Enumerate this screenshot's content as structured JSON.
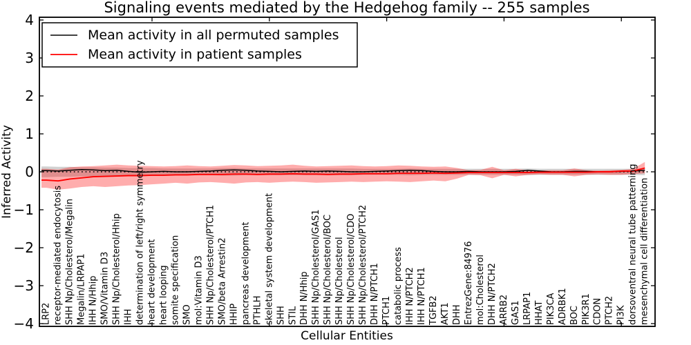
{
  "chart_data": {
    "type": "line",
    "title": "Signaling events mediated by the Hedgehog family -- 255 samples",
    "xlabel": "Cellular Entities",
    "ylabel": "Inferred Activity",
    "ylim": [
      -4,
      4
    ],
    "yticks": [
      -4,
      -3,
      -2,
      -1,
      0,
      1,
      2,
      3,
      4
    ],
    "xticks": [
      10,
      20,
      30,
      40,
      50
    ],
    "grid": false,
    "legend_position": "upper left",
    "sample_count_in_title": 255,
    "categories": [
      "LRP2",
      "receptor-mediated endocytosis",
      "SHH Np/Cholesterol/Megalin",
      "Megalin/LRPAP1",
      "IHH N/Hhip",
      "SMO/Vitamin D3",
      "SHH Np/Cholesterol/Hhip",
      "IHH",
      "determination of left/right symmetry",
      "heart development",
      "heart looping",
      "somite specification",
      "SMO",
      "mol:Vitamin D3",
      "SHH Np/Cholesterol/PTCH1",
      "SMO/beta Arrestin2",
      "HHIP",
      "pancreas development",
      "PTHLH",
      "skeletal system development",
      "SHH",
      "STIL",
      "DHH N/Hhip",
      "SHH Np/Cholesterol/GAS1",
      "SHH Np/Cholesterol/BOC",
      "SHH Np/Cholesterol",
      "SHH Np/Cholesterol/CDO",
      "SHH Np/Cholesterol/PTCH2",
      "DHH N/PTCH1",
      "PTCH1",
      "catabolic process",
      "IHH N/PTCH2",
      "IHH N/PTCH1",
      "TGFB2",
      "AKT1",
      "DHH",
      "EntrezGene:84976",
      "mol:Cholesterol",
      "DHH N/PTCH2",
      "ARRB2",
      "GAS1",
      "LRPAP1",
      "HHAT",
      "PIK3CA",
      "ADRBK1",
      "BOC",
      "PIK3R1",
      "CDON",
      "PTCH2",
      "PI3K",
      "dorsoventral neural tube patterning",
      "mesenchymal cell differentiation"
    ],
    "series": [
      {
        "name": "Mean activity in all permuted samples",
        "color": "#000000",
        "linestyle": "solid",
        "values": [
          0.03,
          0.02,
          0.04,
          0.06,
          0.05,
          0.03,
          0.04,
          0.01,
          -0.01,
          0.0,
          0.01,
          0.0,
          0.0,
          0.01,
          0.02,
          0.04,
          0.05,
          0.04,
          0.02,
          0.01,
          0.0,
          0.01,
          0.02,
          0.01,
          0.02,
          0.01,
          0.0,
          0.0,
          0.01,
          0.02,
          0.03,
          0.04,
          0.03,
          0.01,
          0.0,
          0.0,
          0.01,
          0.0,
          0.0,
          0.0,
          0.01,
          0.04,
          0.02,
          0.0,
          0.0,
          0.01,
          0.01,
          0.0,
          0.0,
          0.01,
          0.02,
          0.04
        ]
      },
      {
        "name": "Mean activity in patient samples",
        "color": "#ff0000",
        "linestyle": "solid",
        "values": [
          -0.22,
          -0.24,
          -0.19,
          -0.16,
          -0.13,
          -0.12,
          -0.11,
          -0.1,
          -0.1,
          -0.09,
          -0.09,
          -0.08,
          -0.08,
          -0.07,
          -0.07,
          -0.07,
          -0.06,
          -0.06,
          -0.07,
          -0.06,
          -0.06,
          -0.05,
          -0.06,
          -0.06,
          -0.07,
          -0.06,
          -0.06,
          -0.05,
          -0.05,
          -0.05,
          -0.04,
          -0.04,
          -0.04,
          -0.03,
          -0.04,
          -0.03,
          -0.02,
          -0.02,
          -0.02,
          -0.02,
          -0.02,
          -0.02,
          -0.01,
          -0.01,
          -0.01,
          -0.01,
          -0.01,
          0.0,
          0.0,
          0.02,
          0.02,
          0.1
        ]
      }
    ],
    "zero_line": {
      "value": 0,
      "color": "#000000",
      "linestyle": "dotted"
    },
    "bands": [
      {
        "name": "permuted samples range",
        "color": "rgba(140,140,140,0.40)",
        "upper": [
          0.14,
          0.13,
          0.13,
          0.12,
          0.12,
          0.11,
          0.11,
          0.1,
          0.1,
          0.1,
          0.09,
          0.09,
          0.09,
          0.09,
          0.09,
          0.1,
          0.1,
          0.09,
          0.09,
          0.09,
          0.09,
          0.09,
          0.09,
          0.09,
          0.09,
          0.09,
          0.09,
          0.08,
          0.08,
          0.08,
          0.08,
          0.09,
          0.08,
          0.08,
          0.08,
          0.08,
          0.08,
          0.08,
          0.08,
          0.08,
          0.08,
          0.09,
          0.08,
          0.08,
          0.08,
          0.08,
          0.08,
          0.08,
          0.08,
          0.08,
          0.08,
          0.09
        ],
        "lower": [
          -0.14,
          -0.13,
          -0.13,
          -0.12,
          -0.12,
          -0.11,
          -0.11,
          -0.1,
          -0.1,
          -0.1,
          -0.09,
          -0.09,
          -0.09,
          -0.09,
          -0.09,
          -0.1,
          -0.1,
          -0.09,
          -0.09,
          -0.09,
          -0.09,
          -0.09,
          -0.09,
          -0.09,
          -0.09,
          -0.09,
          -0.09,
          -0.08,
          -0.08,
          -0.08,
          -0.08,
          -0.09,
          -0.08,
          -0.08,
          -0.08,
          -0.08,
          -0.08,
          -0.08,
          -0.08,
          -0.08,
          -0.08,
          -0.09,
          -0.08,
          -0.08,
          -0.08,
          -0.08,
          -0.08,
          -0.08,
          -0.08,
          -0.08,
          -0.08,
          -0.09
        ]
      },
      {
        "name": "patient samples range",
        "color": "rgba(255,0,0,0.32)",
        "upper": [
          0.08,
          0.06,
          0.12,
          0.14,
          0.15,
          0.17,
          0.19,
          0.17,
          0.16,
          0.15,
          0.14,
          0.15,
          0.17,
          0.15,
          0.14,
          0.16,
          0.18,
          0.17,
          0.15,
          0.16,
          0.17,
          0.19,
          0.16,
          0.14,
          0.15,
          0.16,
          0.17,
          0.15,
          0.14,
          0.15,
          0.17,
          0.16,
          0.14,
          0.13,
          0.14,
          0.1,
          0.04,
          0.05,
          0.13,
          0.04,
          0.08,
          0.04,
          0.03,
          0.04,
          0.04,
          0.09,
          0.04,
          0.03,
          0.04,
          0.05,
          0.08,
          0.26
        ],
        "lower": [
          -0.42,
          -0.47,
          -0.44,
          -0.4,
          -0.38,
          -0.4,
          -0.38,
          -0.36,
          -0.35,
          -0.33,
          -0.31,
          -0.29,
          -0.31,
          -0.28,
          -0.27,
          -0.29,
          -0.31,
          -0.28,
          -0.27,
          -0.29,
          -0.27,
          -0.26,
          -0.27,
          -0.29,
          -0.28,
          -0.27,
          -0.26,
          -0.27,
          -0.26,
          -0.25,
          -0.26,
          -0.27,
          -0.25,
          -0.23,
          -0.25,
          -0.18,
          -0.08,
          -0.09,
          -0.17,
          -0.08,
          -0.12,
          -0.08,
          -0.07,
          -0.08,
          -0.08,
          -0.12,
          -0.08,
          -0.07,
          -0.08,
          -0.08,
          -0.06,
          -0.04
        ]
      }
    ]
  },
  "legend": {
    "entries": [
      {
        "label": "Mean activity in all permuted samples",
        "color": "#000000"
      },
      {
        "label": "Mean activity in patient samples",
        "color": "#ff0000"
      }
    ]
  }
}
